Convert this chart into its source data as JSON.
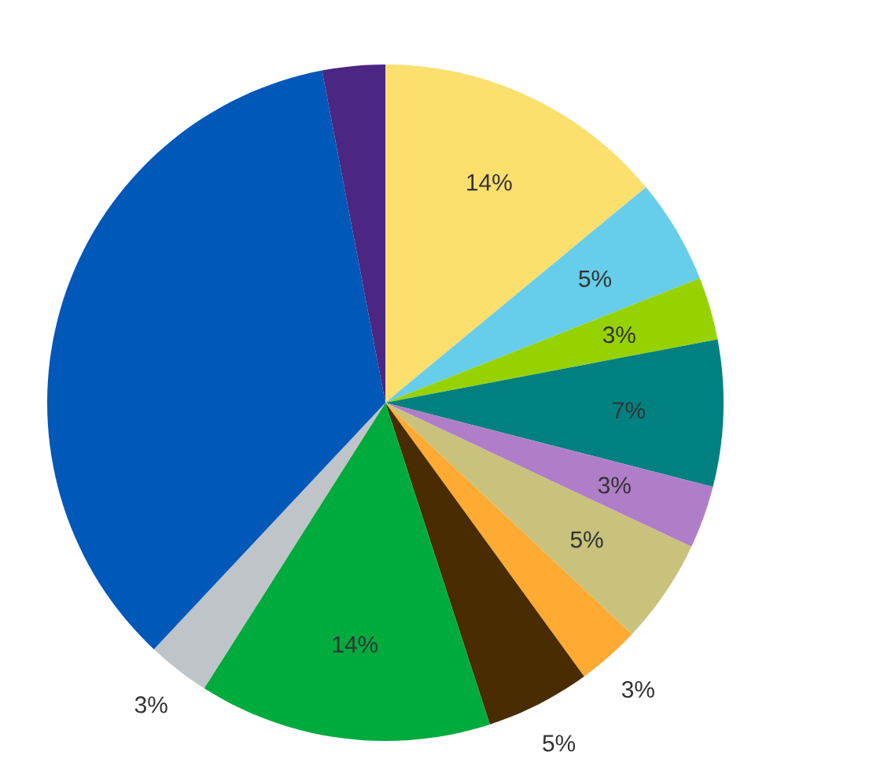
{
  "chart_data": {
    "type": "pie",
    "categories": [
      null,
      null,
      null,
      null,
      null,
      null,
      null,
      null,
      null,
      null,
      null,
      null
    ],
    "values": [
      14,
      5,
      3,
      7,
      3,
      5,
      3,
      5,
      14,
      3,
      35,
      3
    ],
    "colors": [
      "#fddf6d",
      "#66cdea",
      "#96d200",
      "#008080",
      "#b07ec8",
      "#c8c27c",
      "#ffab33",
      "#4a2c02",
      "#00ab3e",
      "#bec4c8",
      "#0058b8",
      "#4b2683"
    ],
    "value_labels": [
      "14%",
      "5%",
      "3%",
      "7%",
      "3%",
      "5%",
      "3%",
      "5%",
      "14%",
      "3%",
      null,
      null
    ]
  }
}
